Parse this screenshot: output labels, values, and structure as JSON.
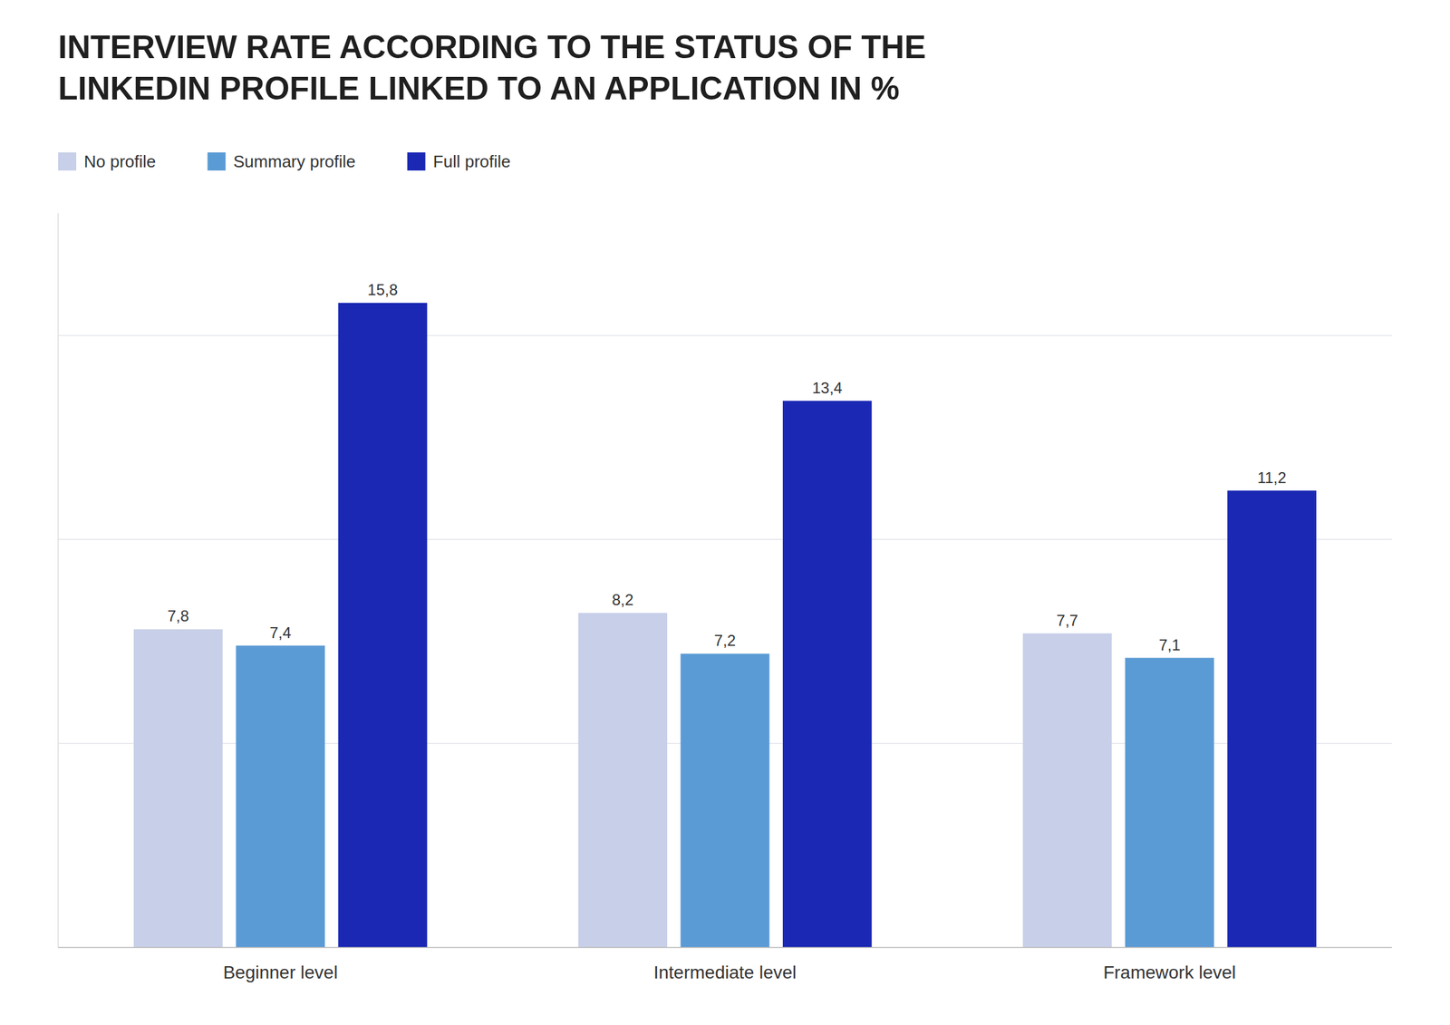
{
  "chart_data": {
    "type": "bar",
    "title": "INTERVIEW RATE ACCORDING TO THE STATUS OF THE\nLINKEDIN PROFILE LINKED TO AN APPLICATION IN %",
    "categories": [
      "Beginner level",
      "Intermediate level",
      "Framework level"
    ],
    "series": [
      {
        "name": "No profile",
        "color": "#c8cfe8",
        "values": [
          7.8,
          8.2,
          7.7
        ],
        "value_labels": [
          "7,8",
          "8,2",
          "7,7"
        ]
      },
      {
        "name": "Summary profile",
        "color": "#5b9bd5",
        "values": [
          7.4,
          7.2,
          7.1
        ],
        "value_labels": [
          "7,4",
          "7,2",
          "7,1"
        ]
      },
      {
        "name": "Full profile",
        "color": "#1a28b4",
        "values": [
          15.8,
          13.4,
          11.2
        ],
        "value_labels": [
          "15,8",
          "13,4",
          "11,2"
        ]
      }
    ],
    "ylim": [
      0,
      18
    ],
    "yticks": [
      5,
      10,
      15
    ],
    "grid": true,
    "tick_labels": "x",
    "data_labels": true,
    "legend": "top"
  }
}
